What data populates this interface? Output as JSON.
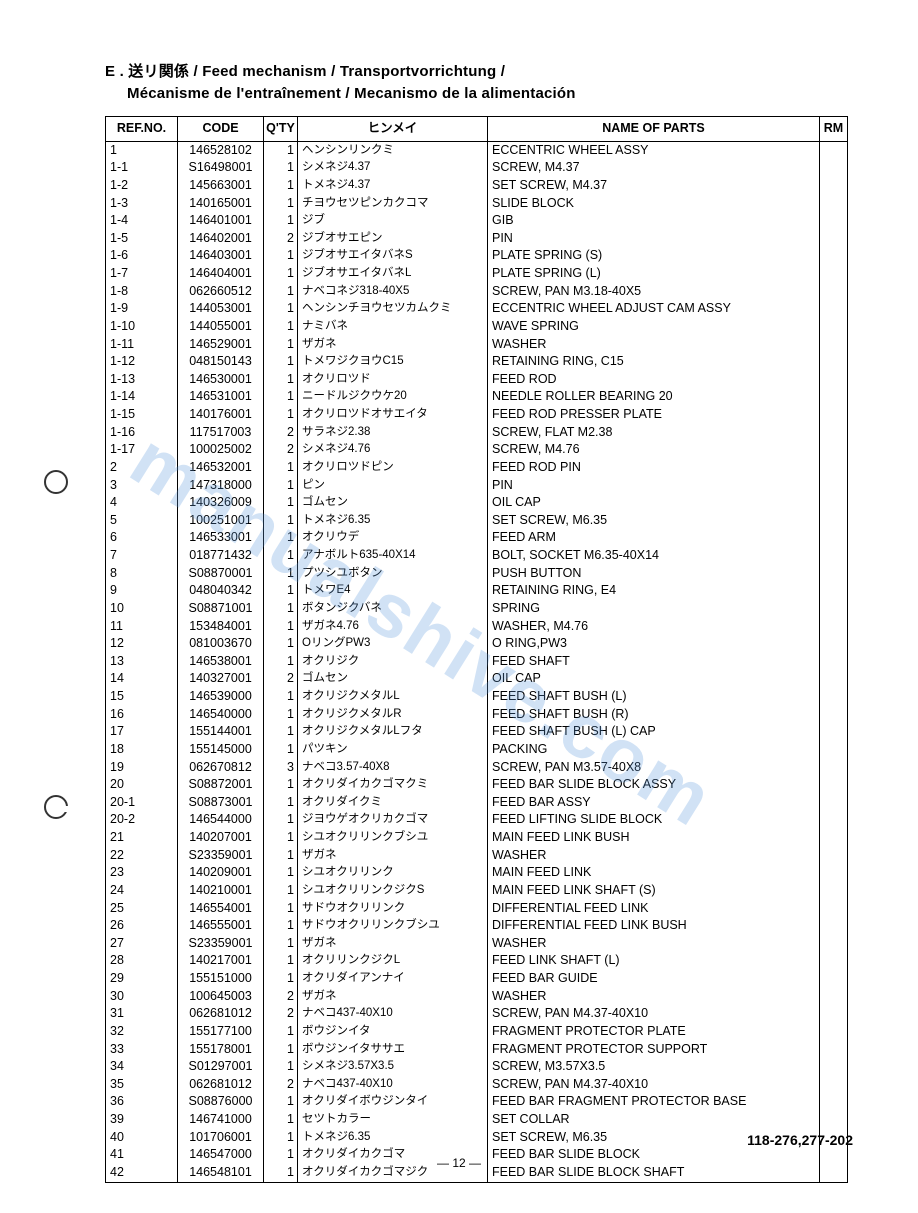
{
  "title_line1": "E . 送リ関係 / Feed mechanism / Transportvorrichtung /",
  "title_line2": "Mécanisme de l'entraînement / Mecanismo de la alimentación",
  "headers": {
    "ref": "REF.NO.",
    "code": "CODE",
    "qty": "Q'TY",
    "jp": "ヒンメイ",
    "name": "NAME OF PARTS",
    "rm": "RM"
  },
  "rows": [
    {
      "ref": "1",
      "code": "146528102",
      "qty": "1",
      "jp": "ヘンシンリンクミ",
      "name": "ECCENTRIC WHEEL ASSY"
    },
    {
      "ref": "1-1",
      "code": "S16498001",
      "qty": "1",
      "jp": "シメネジ4.37",
      "name": "SCREW, M4.37"
    },
    {
      "ref": "1-2",
      "code": "145663001",
      "qty": "1",
      "jp": "トメネジ4.37",
      "name": "SET SCREW, M4.37"
    },
    {
      "ref": "1-3",
      "code": "140165001",
      "qty": "1",
      "jp": "チヨウセツピンカクコマ",
      "name": "SLIDE BLOCK"
    },
    {
      "ref": "1-4",
      "code": "146401001",
      "qty": "1",
      "jp": "ジブ",
      "name": "GIB"
    },
    {
      "ref": "1-5",
      "code": "146402001",
      "qty": "2",
      "jp": "ジブオサエピン",
      "name": "PIN"
    },
    {
      "ref": "1-6",
      "code": "146403001",
      "qty": "1",
      "jp": "ジブオサエイタバネS",
      "name": "PLATE SPRING (S)"
    },
    {
      "ref": "1-7",
      "code": "146404001",
      "qty": "1",
      "jp": "ジブオサエイタバネL",
      "name": "PLATE SPRING (L)"
    },
    {
      "ref": "1-8",
      "code": "062660512",
      "qty": "1",
      "jp": "ナベコネジ318-40X5",
      "name": "SCREW, PAN M3.18-40X5"
    },
    {
      "ref": "1-9",
      "code": "144053001",
      "qty": "1",
      "jp": "ヘンシンチヨウセツカムクミ",
      "name": "ECCENTRIC WHEEL ADJUST CAM ASSY"
    },
    {
      "ref": "1-10",
      "code": "144055001",
      "qty": "1",
      "jp": "ナミバネ",
      "name": "WAVE SPRING"
    },
    {
      "ref": "1-11",
      "code": "146529001",
      "qty": "1",
      "jp": "ザガネ",
      "name": "WASHER"
    },
    {
      "ref": "1-12",
      "code": "048150143",
      "qty": "1",
      "jp": "トメワジクヨウC15",
      "name": "RETAINING RING, C15"
    },
    {
      "ref": "1-13",
      "code": "146530001",
      "qty": "1",
      "jp": "オクリロツド",
      "name": "FEED ROD"
    },
    {
      "ref": "1-14",
      "code": "146531001",
      "qty": "1",
      "jp": "ニードルジクウケ20",
      "name": "NEEDLE ROLLER BEARING 20"
    },
    {
      "ref": "1-15",
      "code": "140176001",
      "qty": "1",
      "jp": "オクリロツドオサエイタ",
      "name": "FEED ROD PRESSER PLATE"
    },
    {
      "ref": "1-16",
      "code": "117517003",
      "qty": "2",
      "jp": "サラネジ2.38",
      "name": "SCREW, FLAT M2.38"
    },
    {
      "ref": "1-17",
      "code": "100025002",
      "qty": "2",
      "jp": "シメネジ4.76",
      "name": "SCREW, M4.76"
    },
    {
      "ref": "2",
      "code": "146532001",
      "qty": "1",
      "jp": "オクリロツドピン",
      "name": "FEED ROD PIN"
    },
    {
      "ref": "3",
      "code": "147318000",
      "qty": "1",
      "jp": "ピン",
      "name": "PIN"
    },
    {
      "ref": "4",
      "code": "140326009",
      "qty": "1",
      "jp": "ゴムセン",
      "name": "OIL CAP"
    },
    {
      "ref": "5",
      "code": "100251001",
      "qty": "1",
      "jp": "トメネジ6.35",
      "name": "SET SCREW, M6.35"
    },
    {
      "ref": "6",
      "code": "146533001",
      "qty": "1",
      "jp": "オクリウデ",
      "name": "FEED ARM"
    },
    {
      "ref": "7",
      "code": "018771432",
      "qty": "1",
      "jp": "アナボルト635-40X14",
      "name": "BOLT, SOCKET M6.35-40X14"
    },
    {
      "ref": "8",
      "code": "S08870001",
      "qty": "1",
      "jp": "プツシユボタン",
      "name": "PUSH BUTTON"
    },
    {
      "ref": "9",
      "code": "048040342",
      "qty": "1",
      "jp": "トメワE4",
      "name": "RETAINING RING, E4"
    },
    {
      "ref": "10",
      "code": "S08871001",
      "qty": "1",
      "jp": "ボタンジクバネ",
      "name": "SPRING"
    },
    {
      "ref": "11",
      "code": "153484001",
      "qty": "1",
      "jp": "ザガネ4.76",
      "name": "WASHER, M4.76"
    },
    {
      "ref": "12",
      "code": "081003670",
      "qty": "1",
      "jp": "OリングPW3",
      "name": "O RING,PW3"
    },
    {
      "ref": "13",
      "code": "146538001",
      "qty": "1",
      "jp": "オクリジク",
      "name": "FEED SHAFT"
    },
    {
      "ref": "14",
      "code": "140327001",
      "qty": "2",
      "jp": "ゴムセン",
      "name": "OIL CAP"
    },
    {
      "ref": "15",
      "code": "146539000",
      "qty": "1",
      "jp": "オクリジクメタルL",
      "name": "FEED SHAFT BUSH (L)"
    },
    {
      "ref": "16",
      "code": "146540000",
      "qty": "1",
      "jp": "オクリジクメタルR",
      "name": "FEED SHAFT BUSH (R)"
    },
    {
      "ref": "17",
      "code": "155144001",
      "qty": "1",
      "jp": "オクリジクメタルLフタ",
      "name": "FEED SHAFT BUSH (L) CAP"
    },
    {
      "ref": "18",
      "code": "155145000",
      "qty": "1",
      "jp": "パツキン",
      "name": "PACKING"
    },
    {
      "ref": "19",
      "code": "062670812",
      "qty": "3",
      "jp": "ナベコ3.57-40X8",
      "name": "SCREW, PAN M3.57-40X8"
    },
    {
      "ref": "20",
      "code": "S08872001",
      "qty": "1",
      "jp": "オクリダイカクゴマクミ",
      "name": "FEED BAR SLIDE BLOCK ASSY"
    },
    {
      "ref": "20-1",
      "code": "S08873001",
      "qty": "1",
      "jp": "オクリダイクミ",
      "name": "FEED BAR ASSY"
    },
    {
      "ref": "20-2",
      "code": "146544000",
      "qty": "1",
      "jp": "ジヨウゲオクリカクゴマ",
      "name": "FEED LIFTING SLIDE BLOCK"
    },
    {
      "ref": "21",
      "code": "140207001",
      "qty": "1",
      "jp": "シユオクリリンクブシユ",
      "name": "MAIN FEED LINK BUSH"
    },
    {
      "ref": "22",
      "code": "S23359001",
      "qty": "1",
      "jp": "ザガネ",
      "name": "WASHER"
    },
    {
      "ref": "23",
      "code": "140209001",
      "qty": "1",
      "jp": "シユオクリリンク",
      "name": "MAIN FEED LINK"
    },
    {
      "ref": "24",
      "code": "140210001",
      "qty": "1",
      "jp": "シユオクリリンクジクS",
      "name": "MAIN FEED LINK SHAFT (S)"
    },
    {
      "ref": "25",
      "code": "146554001",
      "qty": "1",
      "jp": "サドウオクリリンク",
      "name": "DIFFERENTIAL FEED LINK"
    },
    {
      "ref": "26",
      "code": "146555001",
      "qty": "1",
      "jp": "サドウオクリリンクブシユ",
      "name": "DIFFERENTIAL FEED LINK BUSH"
    },
    {
      "ref": "27",
      "code": "S23359001",
      "qty": "1",
      "jp": "ザガネ",
      "name": "WASHER"
    },
    {
      "ref": "28",
      "code": "140217001",
      "qty": "1",
      "jp": "オクリリンクジクL",
      "name": "FEED LINK SHAFT (L)"
    },
    {
      "ref": "29",
      "code": "155151000",
      "qty": "1",
      "jp": "オクリダイアンナイ",
      "name": "FEED BAR GUIDE"
    },
    {
      "ref": "30",
      "code": "100645003",
      "qty": "2",
      "jp": "ザガネ",
      "name": "WASHER"
    },
    {
      "ref": "31",
      "code": "062681012",
      "qty": "2",
      "jp": "ナベコ437-40X10",
      "name": "SCREW, PAN M4.37-40X10"
    },
    {
      "ref": "32",
      "code": "155177100",
      "qty": "1",
      "jp": "ボウジンイタ",
      "name": "FRAGMENT PROTECTOR PLATE"
    },
    {
      "ref": "33",
      "code": "155178001",
      "qty": "1",
      "jp": "ボウジンイタササエ",
      "name": "FRAGMENT PROTECTOR SUPPORT"
    },
    {
      "ref": "34",
      "code": "S01297001",
      "qty": "1",
      "jp": "シメネジ3.57X3.5",
      "name": "SCREW, M3.57X3.5"
    },
    {
      "ref": "35",
      "code": "062681012",
      "qty": "2",
      "jp": "ナベコ437-40X10",
      "name": "SCREW, PAN M4.37-40X10"
    },
    {
      "ref": "36",
      "code": "S08876000",
      "qty": "1",
      "jp": "オクリダイボウジンタイ",
      "name": "FEED BAR FRAGMENT PROTECTOR BASE"
    },
    {
      "ref": "39",
      "code": "146741000",
      "qty": "1",
      "jp": "セツトカラー",
      "name": "SET COLLAR"
    },
    {
      "ref": "40",
      "code": "101706001",
      "qty": "1",
      "jp": "トメネジ6.35",
      "name": "SET SCREW, M6.35"
    },
    {
      "ref": "41",
      "code": "146547000",
      "qty": "1",
      "jp": "オクリダイカクゴマ",
      "name": "FEED BAR SLIDE BLOCK"
    },
    {
      "ref": "42",
      "code": "146548101",
      "qty": "1",
      "jp": "オクリダイカクゴマジク",
      "name": "FEED BAR SLIDE BLOCK SHAFT"
    }
  ],
  "footer_right": "118-276,277-202",
  "footer_center": "— 12 —",
  "watermark": "manualshive.com"
}
